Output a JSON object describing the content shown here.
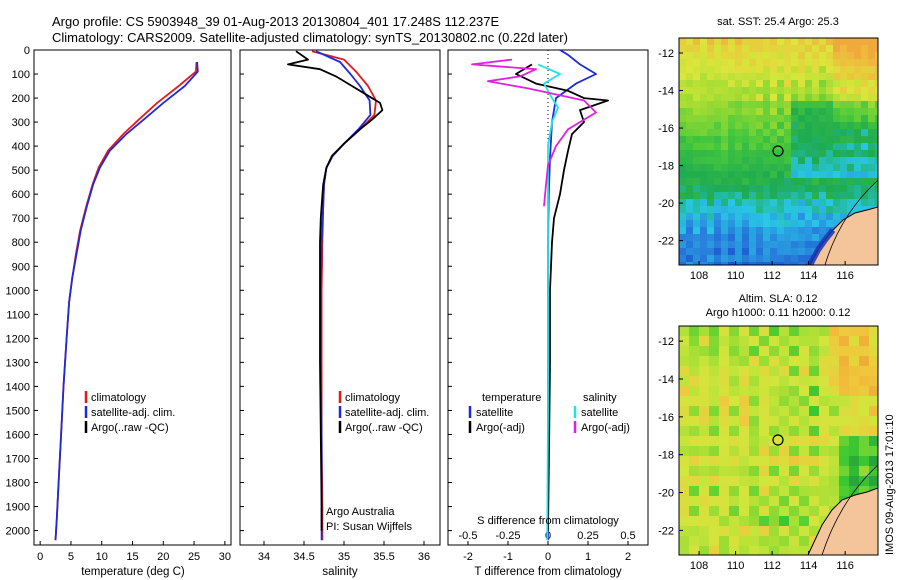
{
  "header": {
    "line1": "Argo profile: CS 5903948_39 01-Aug-2013 20130804_401 17.248S 112.237E",
    "line2": "Climatology: CARS2009. Satellite-adjusted climatology: synTS_20130802.nc (0.22d later)"
  },
  "colors": {
    "climatology": "#e41a1c",
    "satellite": "#1f2bd6",
    "argo": "#000000",
    "cyan": "#22e3e3",
    "magenta": "#e022e0",
    "land": "#f4c49a"
  },
  "chart_data": [
    {
      "type": "line",
      "panel": "temperature",
      "xlabel": "temperature (deg C)",
      "xlim": [
        -1,
        31
      ],
      "xticks": [
        0,
        5,
        10,
        15,
        20,
        25,
        30
      ],
      "ylim": [
        2060,
        0
      ],
      "yticks": [
        0,
        100,
        200,
        300,
        400,
        500,
        600,
        700,
        800,
        900,
        1000,
        1100,
        1200,
        1300,
        1400,
        1500,
        1600,
        1700,
        1800,
        1900,
        2000
      ],
      "legend": [
        "climatology",
        "satellite-adj. clim.",
        "Argo(..raw -QC)"
      ],
      "series": [
        {
          "name": "climatology",
          "color": "#e41a1c",
          "points": [
            [
              25.4,
              50
            ],
            [
              25.3,
              90
            ],
            [
              22.5,
              150
            ],
            [
              19,
              220
            ],
            [
              16,
              290
            ],
            [
              13.5,
              350
            ],
            [
              11,
              420
            ],
            [
              9.5,
              490
            ],
            [
              8.5,
              560
            ],
            [
              7.5,
              650
            ],
            [
              6.5,
              750
            ],
            [
              5.8,
              850
            ],
            [
              5.2,
              950
            ],
            [
              4.7,
              1050
            ],
            [
              4.3,
              1200
            ],
            [
              3.8,
              1400
            ],
            [
              3.4,
              1600
            ],
            [
              3.0,
              1800
            ],
            [
              2.7,
              1950
            ],
            [
              2.5,
              2040
            ]
          ]
        },
        {
          "name": "satellite-adj. clim.",
          "color": "#1f2bd6",
          "points": [
            [
              25.5,
              50
            ],
            [
              25.6,
              90
            ],
            [
              23.5,
              150
            ],
            [
              20,
              220
            ],
            [
              16.8,
              290
            ],
            [
              14,
              350
            ],
            [
              11.3,
              420
            ],
            [
              9.7,
              490
            ],
            [
              8.6,
              560
            ],
            [
              7.6,
              650
            ],
            [
              6.6,
              750
            ],
            [
              5.9,
              850
            ],
            [
              5.2,
              950
            ],
            [
              4.7,
              1050
            ],
            [
              4.3,
              1200
            ],
            [
              3.8,
              1400
            ],
            [
              3.4,
              1600
            ],
            [
              3.0,
              1800
            ],
            [
              2.7,
              1950
            ],
            [
              2.5,
              2040
            ]
          ]
        }
      ]
    },
    {
      "type": "line",
      "panel": "salinity",
      "xlabel": "salinity",
      "xlim": [
        33.7,
        36.2
      ],
      "xticks": [
        34,
        34.5,
        35,
        35.5,
        36
      ],
      "ylim": [
        2060,
        0
      ],
      "legend": [
        "climatology",
        "satellite-adj. clim.",
        "Argo(..raw -QC)"
      ],
      "annotations": [
        "Argo Australia",
        "PI: Susan Wijffels"
      ],
      "series": [
        {
          "name": "climatology",
          "color": "#e41a1c",
          "points": [
            [
              34.6,
              5
            ],
            [
              35.0,
              40
            ],
            [
              35.15,
              90
            ],
            [
              35.3,
              150
            ],
            [
              35.4,
              210
            ],
            [
              35.38,
              270
            ],
            [
              35.2,
              330
            ],
            [
              35.0,
              390
            ],
            [
              34.86,
              440
            ],
            [
              34.78,
              490
            ],
            [
              34.75,
              560
            ],
            [
              34.74,
              650
            ],
            [
              34.73,
              800
            ],
            [
              34.72,
              1000
            ],
            [
              34.72,
              1300
            ],
            [
              34.72,
              1600
            ],
            [
              34.73,
              1900
            ],
            [
              34.73,
              2040
            ]
          ]
        },
        {
          "name": "satellite-adj. clim.",
          "color": "#1f2bd6",
          "points": [
            [
              34.65,
              5
            ],
            [
              34.95,
              50
            ],
            [
              35.08,
              100
            ],
            [
              35.2,
              150
            ],
            [
              35.32,
              210
            ],
            [
              35.33,
              270
            ],
            [
              35.18,
              330
            ],
            [
              35.0,
              390
            ],
            [
              34.86,
              440
            ],
            [
              34.78,
              490
            ],
            [
              34.75,
              560
            ],
            [
              34.74,
              650
            ],
            [
              34.72,
              800
            ],
            [
              34.71,
              1000
            ],
            [
              34.71,
              1300
            ],
            [
              34.72,
              1600
            ],
            [
              34.72,
              1900
            ],
            [
              34.72,
              2040
            ]
          ]
        },
        {
          "name": "Argo(..raw -QC)",
          "color": "#000000",
          "points": [
            [
              34.4,
              5
            ],
            [
              34.55,
              40
            ],
            [
              34.3,
              60
            ],
            [
              34.7,
              80
            ],
            [
              34.9,
              110
            ],
            [
              35.1,
              150
            ],
            [
              35.3,
              190
            ],
            [
              35.45,
              220
            ],
            [
              35.48,
              250
            ],
            [
              35.35,
              290
            ],
            [
              35.2,
              330
            ],
            [
              35.0,
              390
            ],
            [
              34.85,
              440
            ],
            [
              34.78,
              490
            ],
            [
              34.74,
              560
            ],
            [
              34.72,
              650
            ],
            [
              34.71,
              700
            ],
            [
              34.7,
              800
            ],
            [
              34.7,
              1000
            ],
            [
              34.7,
              1300
            ],
            [
              34.71,
              1600
            ],
            [
              34.72,
              1900
            ],
            [
              34.72,
              2000
            ]
          ]
        }
      ]
    },
    {
      "type": "line",
      "panel": "difference",
      "xlabel": "T difference from climatology",
      "xlabel_top": "S difference from climatology",
      "xlim": [
        -2.5,
        2.5
      ],
      "xticks": [
        -2,
        -1,
        0,
        1,
        2
      ],
      "xticks_s": [
        -0.5,
        -0.25,
        0,
        0.25,
        0.5
      ],
      "ylim": [
        2060,
        0
      ],
      "legend": {
        "temperature_title": "temperature",
        "salinity_title": "salinity",
        "temperature": [
          "satellite",
          "Argo(-adj)"
        ],
        "salinity": [
          "satellite",
          "Argo(-adj)"
        ]
      },
      "series": [
        {
          "name": "T satellite",
          "color": "#1f2bd6",
          "points": [
            [
              0.3,
              0
            ],
            [
              0.5,
              20
            ],
            [
              0.8,
              60
            ],
            [
              1.2,
              100
            ],
            [
              0.7,
              140
            ],
            [
              0.2,
              200
            ],
            [
              0.1,
              300
            ],
            [
              0.05,
              450
            ],
            [
              0.02,
              600
            ],
            [
              0.0,
              800
            ],
            [
              0.0,
              1200
            ],
            [
              0.0,
              1600
            ],
            [
              0.0,
              2040
            ]
          ]
        },
        {
          "name": "T Argo(-adj)",
          "color": "#000000",
          "points": [
            [
              -0.4,
              60
            ],
            [
              -0.8,
              100
            ],
            [
              -0.3,
              140
            ],
            [
              0.5,
              170
            ],
            [
              0.9,
              200
            ],
            [
              1.5,
              210
            ],
            [
              0.8,
              250
            ],
            [
              0.9,
              300
            ],
            [
              0.6,
              350
            ],
            [
              0.5,
              420
            ],
            [
              0.4,
              500
            ],
            [
              0.3,
              600
            ],
            [
              0.15,
              700
            ],
            [
              0.1,
              800
            ],
            [
              0.05,
              1000
            ],
            [
              0.05,
              1300
            ],
            [
              0.03,
              1600
            ],
            [
              0.0,
              2000
            ]
          ]
        },
        {
          "name": "S satellite",
          "color": "#22e3e3",
          "points": [
            [
              -0.25,
              60
            ],
            [
              0.3,
              100
            ],
            [
              -0.1,
              140
            ],
            [
              0.1,
              200
            ],
            [
              0.25,
              240
            ],
            [
              0.1,
              300
            ],
            [
              0.0,
              400
            ],
            [
              0.0,
              600
            ],
            [
              0.0,
              1000
            ],
            [
              0.0,
              1500
            ],
            [
              -0.02,
              2040
            ]
          ]
        },
        {
          "name": "S Argo(-adj)",
          "color": "#e022e0",
          "points": [
            [
              -0.9,
              40
            ],
            [
              -1.9,
              60
            ],
            [
              -0.3,
              80
            ],
            [
              -0.7,
              110
            ],
            [
              -1.5,
              130
            ],
            [
              -0.5,
              160
            ],
            [
              0.9,
              210
            ],
            [
              1.2,
              260
            ],
            [
              0.5,
              330
            ],
            [
              0.2,
              400
            ],
            [
              0.0,
              480
            ],
            [
              -0.05,
              560
            ],
            [
              -0.1,
              650
            ]
          ]
        }
      ]
    },
    {
      "type": "heatmap",
      "panel": "sst-map",
      "title": "sat. SST: 25.4 Argo: 25.3",
      "xticks": [
        108,
        110,
        112,
        114,
        116
      ],
      "yticks": [
        -12,
        -14,
        -16,
        -18,
        -20,
        -22
      ],
      "marker": [
        112.237,
        -17.248
      ]
    },
    {
      "type": "heatmap",
      "panel": "sla-map",
      "title_line1": "Altim. SLA: 0.12",
      "title_line2": "Argo h1000: 0.11 h2000: 0.12",
      "xticks": [
        108,
        110,
        112,
        114,
        116
      ],
      "yticks": [
        -12,
        -14,
        -16,
        -18,
        -20,
        -22
      ],
      "marker": [
        112.237,
        -17.248
      ]
    }
  ],
  "side_label": "IMOS 09-Aug-2013 17:01:10"
}
